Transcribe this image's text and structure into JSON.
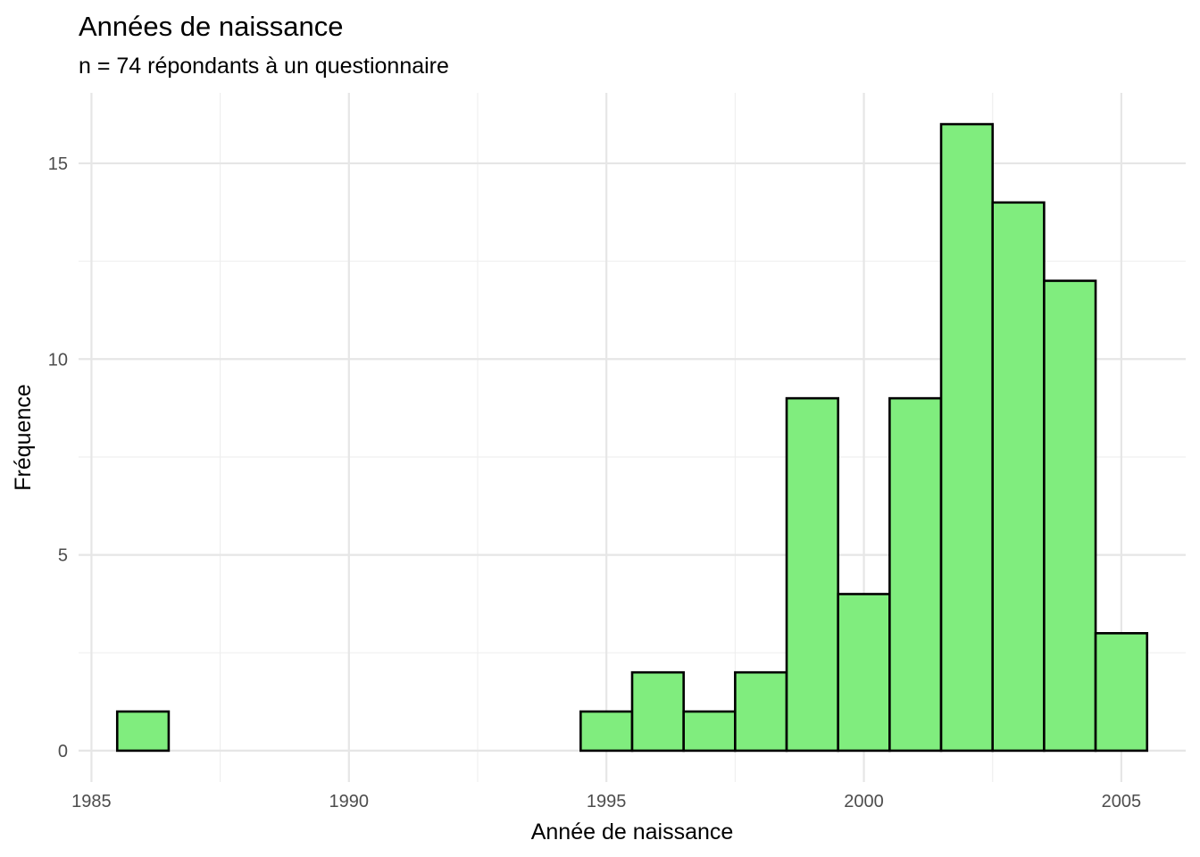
{
  "chart_data": {
    "type": "bar",
    "title": "Années de naissance",
    "subtitle": "n = 74 répondants à un questionnaire",
    "xlabel": "Année de naissance",
    "ylabel": "Fréquence",
    "binwidth": 1,
    "x": [
      1986,
      1987,
      1988,
      1989,
      1990,
      1991,
      1992,
      1993,
      1994,
      1995,
      1996,
      1997,
      1998,
      1999,
      2000,
      2001,
      2002,
      2003,
      2004,
      2005
    ],
    "values": [
      1,
      0,
      0,
      0,
      0,
      0,
      0,
      0,
      0,
      1,
      2,
      1,
      2,
      9,
      4,
      9,
      16,
      14,
      12,
      3
    ],
    "xlim": [
      1984.75,
      2006.25
    ],
    "ylim": [
      -0.8,
      16.8
    ],
    "x_ticks": [
      1985,
      1990,
      1995,
      2000,
      2005
    ],
    "x_tick_labels": [
      "1985",
      "1990",
      "1995",
      "2000",
      "2005"
    ],
    "y_ticks": [
      0,
      5,
      10,
      15
    ],
    "y_tick_labels": [
      "0",
      "5",
      "10",
      "15"
    ],
    "grid": true,
    "legend": "none",
    "bar_fill": "#80ed7e",
    "bar_outline": "#000000"
  }
}
